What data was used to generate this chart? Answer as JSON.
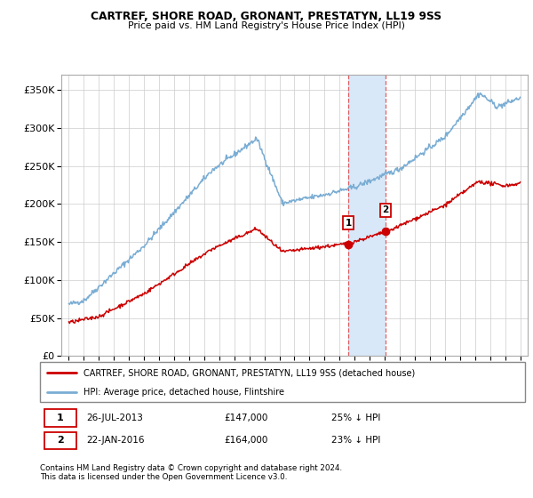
{
  "title": "CARTREF, SHORE ROAD, GRONANT, PRESTATYN, LL19 9SS",
  "subtitle": "Price paid vs. HM Land Registry's House Price Index (HPI)",
  "legend_line1": "CARTREF, SHORE ROAD, GRONANT, PRESTATYN, LL19 9SS (detached house)",
  "legend_line2": "HPI: Average price, detached house, Flintshire",
  "footer": "Contains HM Land Registry data © Crown copyright and database right 2024.\nThis data is licensed under the Open Government Licence v3.0.",
  "sale1_date": "26-JUL-2013",
  "sale1_price": "£147,000",
  "sale1_pct": "25% ↓ HPI",
  "sale2_date": "22-JAN-2016",
  "sale2_price": "£164,000",
  "sale2_pct": "23% ↓ HPI",
  "sale1_x": 2013.57,
  "sale1_y": 147000,
  "sale2_x": 2016.06,
  "sale2_y": 164000,
  "hpi_color": "#7aadd4",
  "property_color": "#cc0000",
  "highlight_color": "#d8e8f8",
  "ylim_min": 0,
  "ylim_max": 370000,
  "xlim_min": 1994.5,
  "xlim_max": 2025.5,
  "yticks": [
    0,
    50000,
    100000,
    150000,
    200000,
    250000,
    300000,
    350000
  ],
  "ytick_labels": [
    "£0",
    "£50K",
    "£100K",
    "£150K",
    "£200K",
    "£250K",
    "£300K",
    "£350K"
  ],
  "xtick_years": [
    1995,
    1996,
    1997,
    1998,
    1999,
    2000,
    2001,
    2002,
    2003,
    2004,
    2005,
    2006,
    2007,
    2008,
    2009,
    2010,
    2011,
    2012,
    2013,
    2014,
    2015,
    2016,
    2017,
    2018,
    2019,
    2020,
    2021,
    2022,
    2023,
    2024,
    2025
  ]
}
